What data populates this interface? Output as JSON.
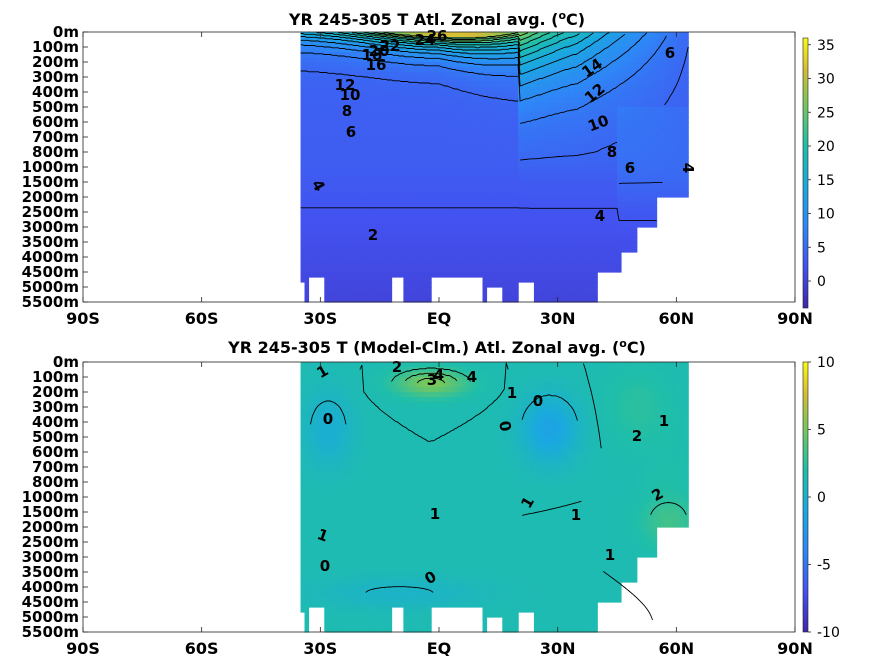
{
  "chart_data": [
    {
      "type": "heatmap",
      "title": "YR 245-305 T Atl. Zonal avg. (°C)",
      "title_main": "YR 245-305 T Atl. Zonal avg. (",
      "title_sup": "o",
      "title_end": "C)",
      "x_ticks": [
        "90S",
        "60S",
        "30S",
        "EQ",
        "30N",
        "60N",
        "90N"
      ],
      "x_values": [
        -90,
        -60,
        -30,
        0,
        30,
        60,
        90
      ],
      "xlim": [
        -90,
        90
      ],
      "y_ticks": [
        "0m",
        "100m",
        "200m",
        "300m",
        "400m",
        "500m",
        "600m",
        "700m",
        "800m",
        "1000m",
        "1500m",
        "2000m",
        "2500m",
        "3000m",
        "3500m",
        "4000m",
        "4500m",
        "5000m",
        "5500m"
      ],
      "y_values": [
        0,
        100,
        200,
        300,
        400,
        500,
        600,
        700,
        800,
        1000,
        1500,
        2000,
        2500,
        3000,
        3500,
        4000,
        4500,
        5000,
        5500
      ],
      "y_scale": "irregular (stretched upper ocean)",
      "data_lat_range": [
        -35,
        63
      ],
      "colorbar": {
        "ticks": [
          "35",
          "30",
          "25",
          "20",
          "15",
          "10",
          "5",
          "0"
        ],
        "tick_values": [
          35,
          30,
          25,
          20,
          15,
          10,
          5,
          0
        ],
        "range": [
          -4,
          36
        ]
      },
      "contour_labels": [
        "26",
        "24",
        "22",
        "20",
        "18",
        "16",
        "14",
        "12",
        "12",
        "10",
        "10",
        "8",
        "8",
        "6",
        "6",
        "6",
        "4",
        "4",
        "4",
        "2"
      ],
      "contour_levels": [
        26,
        24,
        22,
        20,
        18,
        16,
        14,
        12,
        10,
        8,
        6,
        4,
        2
      ]
    },
    {
      "type": "heatmap",
      "title": "YR 245-305 T (Model-Clm.) Atl. Zonal avg. (°C)",
      "title_main": "YR 245-305 T (Model-Clm.) Atl. Zonal avg. (",
      "title_sup": "o",
      "title_end": "C)",
      "x_ticks": [
        "90S",
        "60S",
        "30S",
        "EQ",
        "30N",
        "60N",
        "90N"
      ],
      "x_values": [
        -90,
        -60,
        -30,
        0,
        30,
        60,
        90
      ],
      "xlim": [
        -90,
        90
      ],
      "y_ticks": [
        "0m",
        "100m",
        "200m",
        "300m",
        "400m",
        "500m",
        "600m",
        "700m",
        "800m",
        "1000m",
        "1500m",
        "2000m",
        "2500m",
        "3000m",
        "3500m",
        "4000m",
        "4500m",
        "5000m",
        "5500m"
      ],
      "y_values": [
        0,
        100,
        200,
        300,
        400,
        500,
        600,
        700,
        800,
        1000,
        1500,
        2000,
        2500,
        3000,
        3500,
        4000,
        4500,
        5000,
        5500
      ],
      "y_scale": "irregular (stretched upper ocean)",
      "data_lat_range": [
        -35,
        63
      ],
      "colorbar": {
        "ticks": [
          "10",
          "5",
          "0",
          "-5",
          "-10"
        ],
        "tick_values": [
          10,
          5,
          0,
          -5,
          -10
        ],
        "range": [
          -10,
          10
        ]
      },
      "contour_labels": [
        "1",
        "2",
        "3",
        "4",
        "4",
        "1",
        "0",
        "0",
        "0",
        "1",
        "2",
        "2",
        "1",
        "1",
        "1",
        "1",
        "1",
        "0",
        "0"
      ],
      "contour_levels": [
        4,
        3,
        2,
        1,
        0
      ]
    }
  ]
}
